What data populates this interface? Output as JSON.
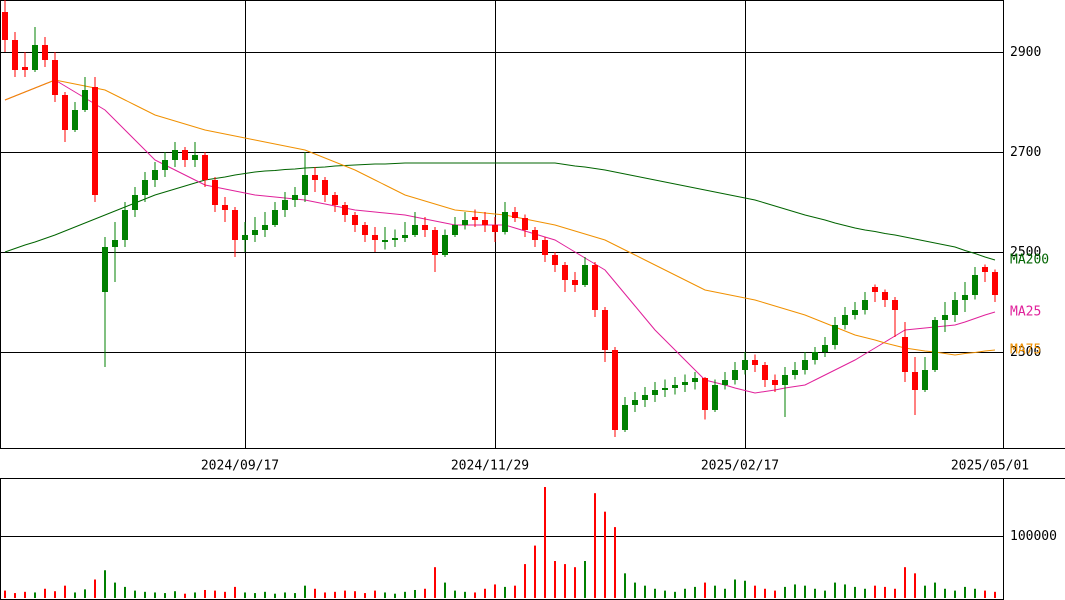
{
  "chart_data": [
    {
      "type": "candlestick",
      "up_color": "#008000",
      "down_color": "#ff0000",
      "categories": [
        null,
        null,
        null,
        null,
        null,
        null,
        null,
        null,
        null,
        null,
        null,
        null,
        null,
        null,
        null,
        null,
        null,
        null,
        null,
        null,
        null,
        null,
        null,
        null,
        "2024/09/17",
        null,
        null,
        null,
        null,
        null,
        null,
        null,
        null,
        null,
        null,
        null,
        null,
        null,
        null,
        null,
        null,
        null,
        null,
        null,
        null,
        null,
        null,
        null,
        null,
        "2024/11/29",
        null,
        null,
        null,
        null,
        null,
        null,
        null,
        null,
        null,
        null,
        null,
        null,
        null,
        null,
        null,
        null,
        null,
        null,
        null,
        null,
        null,
        null,
        null,
        null,
        "2025/02/17",
        null,
        null,
        null,
        null,
        null,
        null,
        null,
        null,
        null,
        null,
        null,
        null,
        null,
        null,
        null,
        null,
        null,
        null,
        null,
        null,
        null,
        null,
        null,
        null,
        "2025/05/01"
      ],
      "ohlc": [
        [
          2980,
          3004,
          2900,
          2924
        ],
        [
          2924,
          2940,
          2850,
          2864
        ],
        [
          2870,
          2900,
          2850,
          2864
        ],
        [
          2864,
          2950,
          2860,
          2914
        ],
        [
          2914,
          2930,
          2870,
          2884
        ],
        [
          2884,
          2900,
          2800,
          2814
        ],
        [
          2814,
          2820,
          2720,
          2744
        ],
        [
          2744,
          2800,
          2740,
          2784
        ],
        [
          2784,
          2850,
          2780,
          2824
        ],
        [
          2830,
          2850,
          2600,
          2614
        ],
        [
          2420,
          2530,
          2270,
          2510
        ],
        [
          2510,
          2560,
          2440,
          2524
        ],
        [
          2524,
          2600,
          2510,
          2584
        ],
        [
          2584,
          2630,
          2570,
          2614
        ],
        [
          2614,
          2660,
          2600,
          2644
        ],
        [
          2644,
          2680,
          2630,
          2664
        ],
        [
          2664,
          2700,
          2650,
          2684
        ],
        [
          2684,
          2720,
          2670,
          2704
        ],
        [
          2704,
          2710,
          2670,
          2684
        ],
        [
          2684,
          2720,
          2670,
          2694
        ],
        [
          2694,
          2700,
          2630,
          2644
        ],
        [
          2644,
          2650,
          2580,
          2594
        ],
        [
          2594,
          2610,
          2560,
          2584
        ],
        [
          2584,
          2590,
          2490,
          2524
        ],
        [
          2524,
          2560,
          2500,
          2534
        ],
        [
          2534,
          2570,
          2520,
          2544
        ],
        [
          2544,
          2580,
          2530,
          2554
        ],
        [
          2554,
          2600,
          2550,
          2584
        ],
        [
          2584,
          2620,
          2570,
          2604
        ],
        [
          2604,
          2630,
          2590,
          2614
        ],
        [
          2614,
          2700,
          2600,
          2654
        ],
        [
          2654,
          2670,
          2620,
          2644
        ],
        [
          2644,
          2650,
          2600,
          2614
        ],
        [
          2614,
          2620,
          2580,
          2594
        ],
        [
          2594,
          2600,
          2560,
          2574
        ],
        [
          2574,
          2580,
          2540,
          2554
        ],
        [
          2554,
          2560,
          2520,
          2534
        ],
        [
          2534,
          2550,
          2500,
          2524
        ],
        [
          2520,
          2550,
          2505,
          2524
        ],
        [
          2524,
          2545,
          2510,
          2528
        ],
        [
          2528,
          2560,
          2520,
          2534
        ],
        [
          2534,
          2580,
          2530,
          2554
        ],
        [
          2554,
          2570,
          2530,
          2544
        ],
        [
          2544,
          2550,
          2460,
          2494
        ],
        [
          2494,
          2545,
          2490,
          2534
        ],
        [
          2534,
          2570,
          2530,
          2554
        ],
        [
          2554,
          2580,
          2545,
          2564
        ],
        [
          2570,
          2585,
          2550,
          2564
        ],
        [
          2564,
          2580,
          2540,
          2554
        ],
        [
          2554,
          2570,
          2520,
          2540
        ],
        [
          2540,
          2600,
          2535,
          2580
        ],
        [
          2580,
          2590,
          2560,
          2568
        ],
        [
          2568,
          2575,
          2530,
          2544
        ],
        [
          2544,
          2550,
          2510,
          2524
        ],
        [
          2524,
          2530,
          2480,
          2494
        ],
        [
          2494,
          2500,
          2460,
          2474
        ],
        [
          2474,
          2480,
          2420,
          2444
        ],
        [
          2444,
          2460,
          2420,
          2434
        ],
        [
          2434,
          2490,
          2430,
          2474
        ],
        [
          2474,
          2480,
          2370,
          2384
        ],
        [
          2384,
          2390,
          2280,
          2304
        ],
        [
          2304,
          2310,
          2130,
          2144
        ],
        [
          2144,
          2210,
          2140,
          2194
        ],
        [
          2194,
          2220,
          2180,
          2204
        ],
        [
          2204,
          2230,
          2190,
          2214
        ],
        [
          2214,
          2240,
          2200,
          2224
        ],
        [
          2224,
          2245,
          2210,
          2228
        ],
        [
          2228,
          2250,
          2215,
          2234
        ],
        [
          2234,
          2255,
          2220,
          2240
        ],
        [
          2240,
          2260,
          2225,
          2248
        ],
        [
          2248,
          2250,
          2165,
          2184
        ],
        [
          2184,
          2245,
          2180,
          2234
        ],
        [
          2234,
          2260,
          2225,
          2244
        ],
        [
          2244,
          2280,
          2235,
          2264
        ],
        [
          2264,
          2300,
          2255,
          2284
        ],
        [
          2284,
          2295,
          2260,
          2274
        ],
        [
          2274,
          2280,
          2230,
          2244
        ],
        [
          2244,
          2255,
          2220,
          2234
        ],
        [
          2234,
          2270,
          2170,
          2254
        ],
        [
          2254,
          2280,
          2245,
          2264
        ],
        [
          2264,
          2300,
          2255,
          2284
        ],
        [
          2284,
          2310,
          2275,
          2300
        ],
        [
          2300,
          2330,
          2290,
          2314
        ],
        [
          2314,
          2370,
          2305,
          2354
        ],
        [
          2354,
          2390,
          2345,
          2374
        ],
        [
          2374,
          2400,
          2365,
          2384
        ],
        [
          2384,
          2420,
          2375,
          2404
        ],
        [
          2430,
          2435,
          2400,
          2420
        ],
        [
          2420,
          2425,
          2390,
          2404
        ],
        [
          2404,
          2410,
          2330,
          2384
        ],
        [
          2330,
          2360,
          2240,
          2260
        ],
        [
          2260,
          2290,
          2174,
          2224
        ],
        [
          2224,
          2290,
          2220,
          2264
        ],
        [
          2264,
          2370,
          2260,
          2364
        ],
        [
          2364,
          2400,
          2340,
          2374
        ],
        [
          2374,
          2420,
          2360,
          2404
        ],
        [
          2404,
          2440,
          2380,
          2414
        ],
        [
          2414,
          2470,
          2405,
          2454
        ],
        [
          2470,
          2475,
          2440,
          2460
        ],
        [
          2460,
          2465,
          2400,
          2414
        ]
      ],
      "series": [
        {
          "name": "MA200",
          "color": "#006400",
          "values": [
            2500,
            2507,
            2514,
            2520,
            2527,
            2534,
            2542,
            2550,
            2558,
            2566,
            2574,
            2582,
            2590,
            2598,
            2606,
            2614,
            2620,
            2626,
            2632,
            2638,
            2644,
            2647,
            2650,
            2654,
            2657,
            2660,
            2662,
            2663,
            2665,
            2666,
            2668,
            2669,
            2670,
            2672,
            2673,
            2674,
            2675,
            2676,
            2676,
            2677,
            2678,
            2678,
            2678,
            2678,
            2678,
            2678,
            2678,
            2678,
            2678,
            2678,
            2678,
            2678,
            2678,
            2678,
            2678,
            2678,
            2675,
            2672,
            2670,
            2667,
            2664,
            2660,
            2656,
            2652,
            2648,
            2644,
            2640,
            2636,
            2632,
            2628,
            2624,
            2620,
            2616,
            2612,
            2608,
            2604,
            2598,
            2592,
            2586,
            2580,
            2574,
            2569,
            2564,
            2558,
            2553,
            2548,
            2544,
            2541,
            2537,
            2534,
            2530,
            2526,
            2522,
            2518,
            2514,
            2510,
            2503,
            2497,
            2490,
            2484
          ]
        },
        {
          "name": "MA25",
          "color": "#e0209a",
          "values": [
            2804,
            2812,
            2820,
            2828,
            2836,
            2844,
            2832,
            2820,
            2808,
            2796,
            2784,
            2764,
            2744,
            2724,
            2704,
            2684,
            2674,
            2664,
            2654,
            2644,
            2634,
            2630,
            2626,
            2622,
            2618,
            2614,
            2612,
            2610,
            2608,
            2606,
            2604,
            2600,
            2596,
            2592,
            2588,
            2584,
            2582,
            2580,
            2578,
            2576,
            2574,
            2570,
            2566,
            2562,
            2558,
            2554,
            2554,
            2554,
            2554,
            2554,
            2554,
            2548,
            2542,
            2536,
            2530,
            2524,
            2512,
            2500,
            2488,
            2476,
            2464,
            2440,
            2416,
            2392,
            2368,
            2344,
            2324,
            2304,
            2284,
            2264,
            2244,
            2239,
            2234,
            2228,
            2223,
            2218,
            2221,
            2224,
            2228,
            2231,
            2234,
            2244,
            2254,
            2264,
            2274,
            2284,
            2296,
            2308,
            2320,
            2332,
            2344,
            2346,
            2348,
            2350,
            2352,
            2354,
            2360,
            2367,
            2374,
            2380
          ]
        },
        {
          "name": "MA75",
          "color": "#f09000",
          "values": [
            2804,
            2812,
            2820,
            2828,
            2836,
            2844,
            2840,
            2836,
            2832,
            2828,
            2824,
            2814,
            2804,
            2794,
            2784,
            2774,
            2768,
            2762,
            2756,
            2750,
            2744,
            2740,
            2736,
            2732,
            2728,
            2724,
            2720,
            2716,
            2712,
            2708,
            2704,
            2696,
            2688,
            2680,
            2672,
            2664,
            2654,
            2644,
            2634,
            2624,
            2614,
            2608,
            2602,
            2596,
            2590,
            2584,
            2582,
            2580,
            2578,
            2576,
            2574,
            2570,
            2566,
            2562,
            2558,
            2554,
            2548,
            2542,
            2536,
            2530,
            2524,
            2514,
            2504,
            2494,
            2484,
            2474,
            2464,
            2454,
            2444,
            2434,
            2424,
            2420,
            2416,
            2412,
            2408,
            2404,
            2398,
            2392,
            2386,
            2380,
            2374,
            2366,
            2358,
            2350,
            2342,
            2334,
            2329,
            2324,
            2318,
            2313,
            2308,
            2305,
            2302,
            2300,
            2297,
            2294,
            2297,
            2299,
            2302,
            2304
          ]
        }
      ],
      "ylim": [
        2108,
        3004
      ],
      "yticks": [
        2300,
        2500,
        2700,
        2900
      ],
      "grid": true
    },
    {
      "type": "bar",
      "color_by": "candles",
      "values": [
        12000,
        8000,
        10000,
        9000,
        15000,
        11000,
        20000,
        9000,
        14000,
        30000,
        45000,
        25000,
        18000,
        12000,
        10000,
        9000,
        8000,
        11000,
        7000,
        9000,
        13000,
        12000,
        10000,
        18000,
        9000,
        8000,
        10000,
        7000,
        9000,
        8000,
        20000,
        15000,
        9000,
        10000,
        12000,
        11000,
        8000,
        12000,
        9000,
        7000,
        10000,
        13000,
        15000,
        50000,
        25000,
        12000,
        10000,
        9000,
        15000,
        22000,
        18000,
        20000,
        55000,
        85000,
        180000,
        60000,
        55000,
        50000,
        60000,
        170000,
        140000,
        115000,
        40000,
        25000,
        20000,
        15000,
        12000,
        10000,
        15000,
        18000,
        25000,
        20000,
        15000,
        30000,
        28000,
        20000,
        15000,
        12000,
        18000,
        22000,
        20000,
        15000,
        12000,
        25000,
        22000,
        18000,
        15000,
        20000,
        18000,
        15000,
        50000,
        40000,
        20000,
        25000,
        15000,
        12000,
        18000,
        15000,
        12000,
        10000
      ],
      "ylim": [
        0,
        193000
      ],
      "yticks": [
        100000
      ],
      "grid": true
    }
  ]
}
